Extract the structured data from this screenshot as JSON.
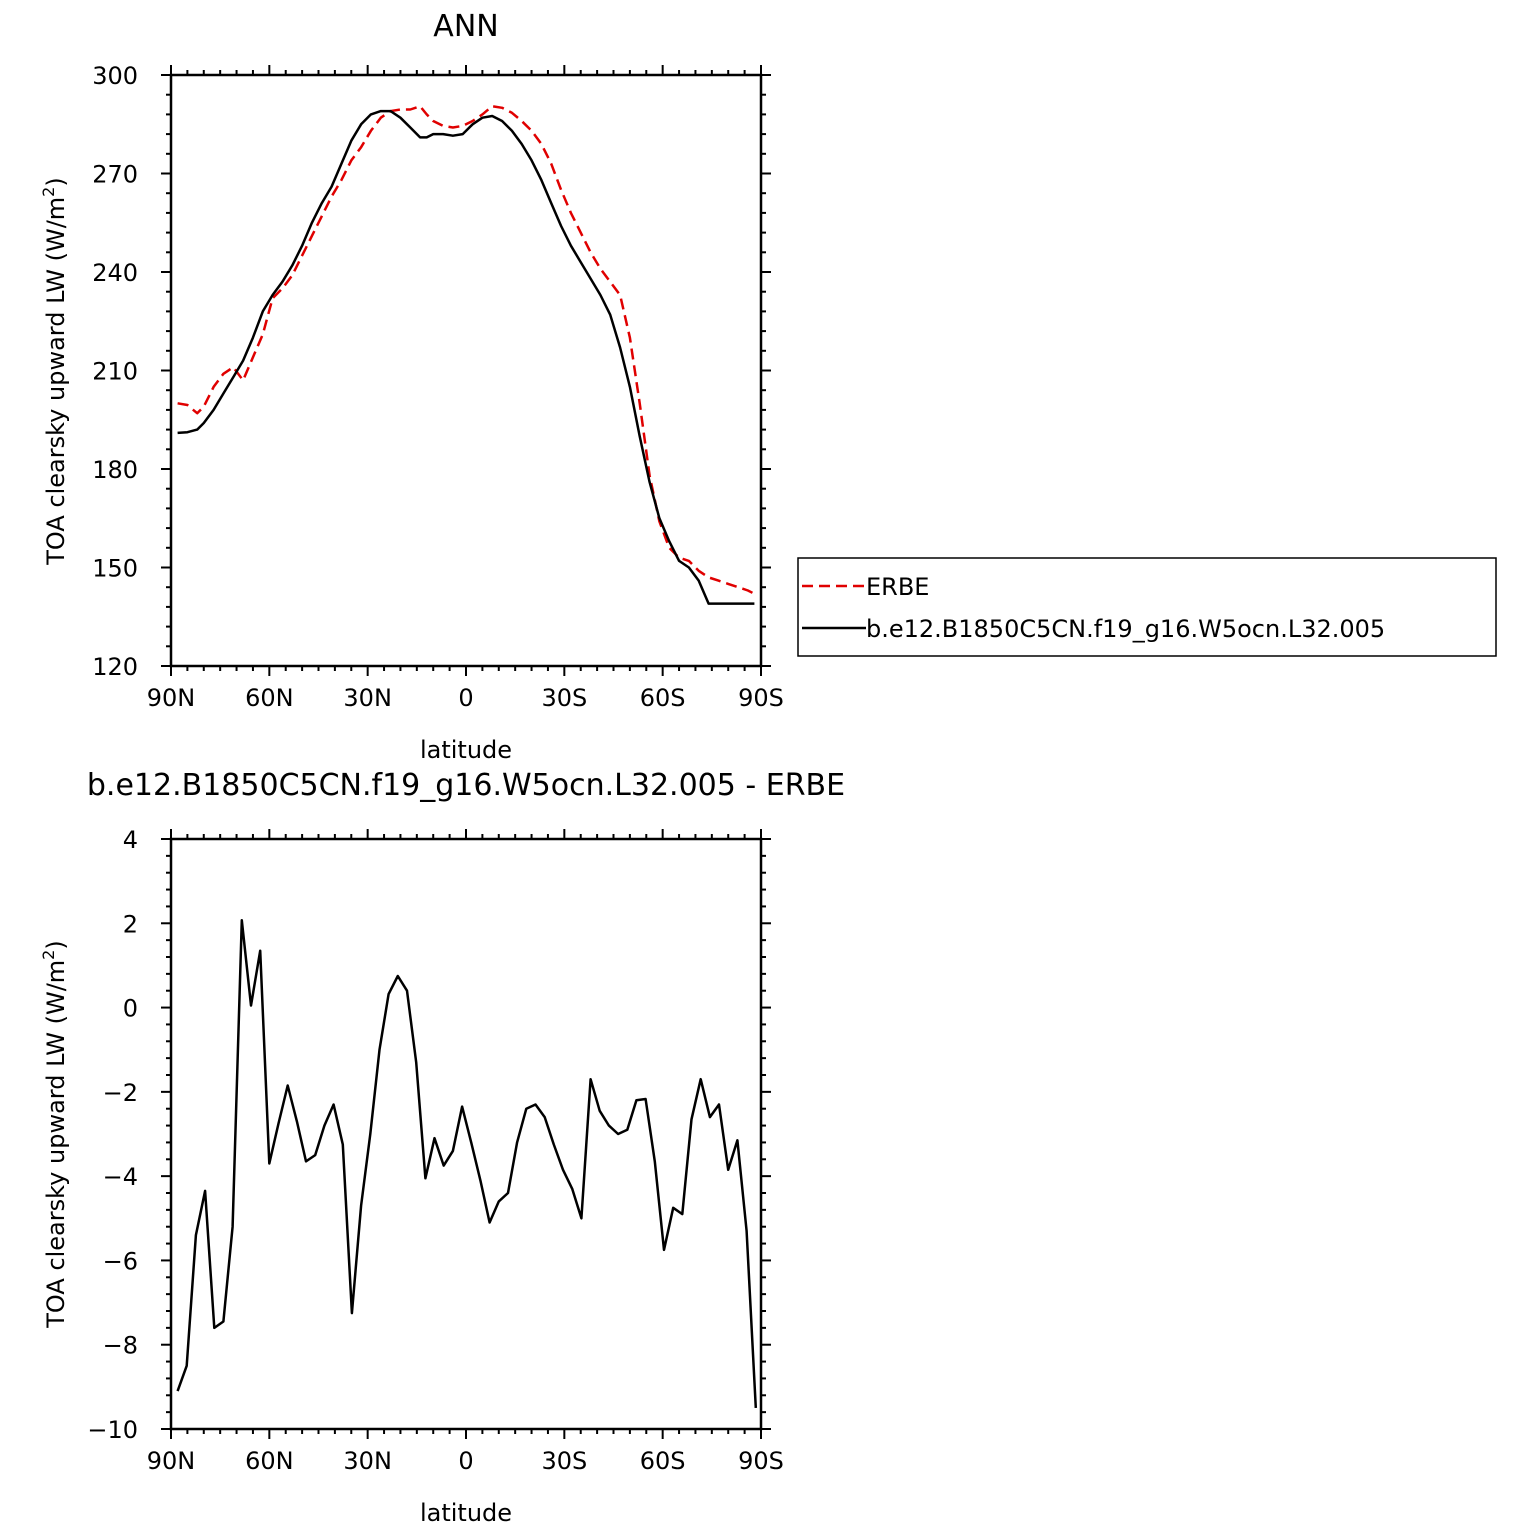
{
  "chart_data": [
    {
      "type": "line",
      "title": "ANN",
      "xlabel": "latitude",
      "ylabel": "TOA clearsky upward LW (W/m²)",
      "ylabel_main": "TOA clearsky upward LW (W/m",
      "ylabel_sup": "2",
      "ylabel_close": ")",
      "xlim": [
        90,
        -90
      ],
      "ylim": [
        120,
        300
      ],
      "xticks": [
        {
          "value": 90,
          "label": "90N"
        },
        {
          "value": 60,
          "label": "60N"
        },
        {
          "value": 30,
          "label": "30N"
        },
        {
          "value": 0,
          "label": "0"
        },
        {
          "value": -30,
          "label": "30S"
        },
        {
          "value": -60,
          "label": "60S"
        },
        {
          "value": -90,
          "label": "90S"
        }
      ],
      "yticks": [
        120,
        150,
        180,
        210,
        240,
        270,
        300
      ],
      "grid": false,
      "legend_position": "right",
      "series": [
        {
          "name": "ERBE",
          "color": "#e00000",
          "dash": "dashed",
          "x": [
            88,
            85,
            82,
            80,
            77,
            74,
            71,
            68,
            65,
            62,
            59,
            56,
            53,
            50,
            47,
            44,
            41,
            38,
            35,
            32,
            29,
            26,
            23,
            20,
            17,
            14,
            12,
            10,
            7,
            4,
            1,
            -2,
            -5,
            -8,
            -11,
            -14,
            -17,
            -20,
            -23,
            -26,
            -29,
            -32,
            -35,
            -38,
            -41,
            -44,
            -47,
            -50,
            -53,
            -56,
            -59,
            -62,
            -65,
            -68,
            -71,
            -74,
            -77,
            -80,
            -83,
            -86,
            -88
          ],
          "y": [
            200,
            199.5,
            197,
            199,
            205,
            209,
            211,
            207,
            214,
            221,
            232,
            235,
            239,
            245,
            251,
            257,
            263,
            268,
            274,
            278,
            283,
            287,
            289,
            289.5,
            289.5,
            290.5,
            288,
            286,
            284.5,
            284,
            284.5,
            286,
            288,
            290.5,
            290,
            288.5,
            286,
            283,
            279,
            273,
            265,
            258,
            252,
            246,
            241,
            237,
            233,
            220,
            200,
            178,
            164,
            156,
            153,
            152,
            149,
            147,
            146,
            145,
            144,
            143,
            142
          ]
        },
        {
          "name": "b.e12.B1850C5CN.f19_g16.W5ocn.L32.005",
          "color": "#000000",
          "dash": "solid",
          "x": [
            88,
            85,
            82,
            80,
            77,
            74,
            71,
            68,
            65,
            62,
            59,
            56,
            53,
            50,
            47,
            44,
            41,
            38,
            35,
            32,
            29,
            26,
            23,
            20,
            17,
            14,
            12,
            10,
            7,
            4,
            1,
            -2,
            -5,
            -8,
            -11,
            -14,
            -17,
            -20,
            -23,
            -26,
            -29,
            -32,
            -35,
            -38,
            -41,
            -44,
            -47,
            -50,
            -53,
            -56,
            -59,
            -62,
            -65,
            -68,
            -71,
            -74,
            -77,
            -80,
            -83,
            -86,
            -88
          ],
          "y": [
            191,
            191.2,
            192,
            194,
            198,
            203,
            208,
            213,
            220,
            228,
            233,
            237,
            242,
            248,
            255,
            261,
            266,
            273,
            280,
            285,
            288,
            289,
            289,
            287,
            284,
            281,
            281,
            282,
            282,
            281.5,
            282,
            285,
            287,
            287.5,
            286,
            283,
            279,
            274,
            268,
            261,
            254,
            248,
            243,
            238,
            233,
            227,
            217,
            205,
            190,
            176,
            165,
            158,
            152,
            150,
            146,
            139,
            139,
            139,
            139,
            139,
            139
          ]
        }
      ]
    },
    {
      "type": "line",
      "title": "b.e12.B1850C5CN.f19_g16.W5ocn.L32.005 - ERBE",
      "xlabel": "latitude",
      "ylabel": "TOA clearsky upward LW (W/m²)",
      "ylabel_main": "TOA clearsky upward LW (W/m",
      "ylabel_sup": "2",
      "ylabel_close": ")",
      "xlim": [
        90,
        -90
      ],
      "ylim": [
        -10,
        4
      ],
      "xticks": [
        {
          "value": 90,
          "label": "90N"
        },
        {
          "value": 60,
          "label": "60N"
        },
        {
          "value": 30,
          "label": "30N"
        },
        {
          "value": 0,
          "label": "0"
        },
        {
          "value": -30,
          "label": "30S"
        },
        {
          "value": -60,
          "label": "60S"
        },
        {
          "value": -90,
          "label": "90S"
        }
      ],
      "yticks": [
        -10,
        -8,
        -6,
        -4,
        -2,
        0,
        2,
        4
      ],
      "grid": false,
      "series": [
        {
          "name": "",
          "color": "#000000",
          "dash": "solid",
          "x": [
            88,
            85.2,
            82.4,
            79.6,
            76.8,
            74,
            71.2,
            68.4,
            65.6,
            62.8,
            60,
            57.2,
            54.4,
            51.6,
            48.8,
            46,
            43.2,
            40.4,
            37.6,
            34.8,
            32,
            29.2,
            26.4,
            23.6,
            20.8,
            18,
            15.2,
            12.4,
            9.6,
            6.8,
            4,
            1.2,
            -1.6,
            -4.4,
            -7.2,
            -10,
            -12.8,
            -15.6,
            -18.4,
            -21.2,
            -24,
            -26.8,
            -29.6,
            -32.4,
            -35.2,
            -38,
            -40.8,
            -43.6,
            -46.4,
            -49.2,
            -52,
            -54.8,
            -57.6,
            -60.4,
            -63.2,
            -66,
            -68.8,
            -71.6,
            -74.4,
            -77.2,
            -80,
            -82.8,
            -85.6,
            -88.4
          ],
          "y": [
            -9.1,
            -8.5,
            -5.4,
            -4.35,
            -7.6,
            -7.45,
            -5.2,
            2.07,
            0.05,
            1.35,
            -3.7,
            -2.75,
            -1.85,
            -2.7,
            -3.65,
            -3.5,
            -2.8,
            -2.3,
            -3.25,
            -7.25,
            -4.7,
            -3.0,
            -1.0,
            0.32,
            0.75,
            0.4,
            -1.3,
            -4.05,
            -3.1,
            -3.75,
            -3.4,
            -2.35,
            -3.2,
            -4.1,
            -5.1,
            -4.6,
            -4.4,
            -3.2,
            -2.4,
            -2.3,
            -2.6,
            -3.25,
            -3.85,
            -4.3,
            -5.0,
            -1.7,
            -2.45,
            -2.8,
            -3.0,
            -2.9,
            -2.2,
            -2.17,
            -3.65,
            -5.75,
            -4.75,
            -4.9,
            -2.65,
            -1.7,
            -2.6,
            -2.3,
            -3.85,
            -3.15,
            -5.3,
            -9.5
          ]
        }
      ]
    }
  ]
}
